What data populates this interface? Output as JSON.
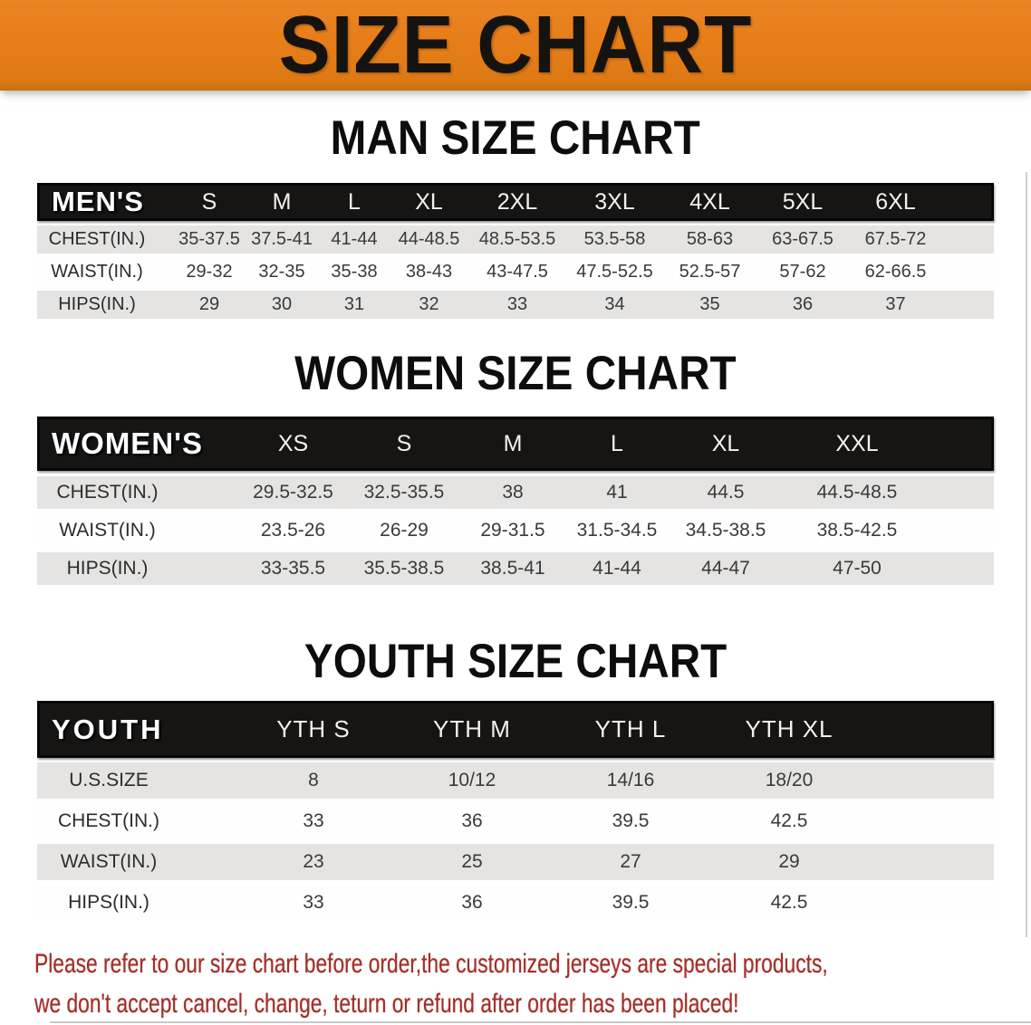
{
  "banner": {
    "title": "SIZE CHART"
  },
  "colors": {
    "banner_bg": "#e67d18",
    "header_bar_bg": "#171513",
    "shaded_row_bg": "#e5e4e2",
    "footer_text": "#a42e28"
  },
  "sections": [
    {
      "title": "MAN SIZE CHART",
      "header_label": "MEN'S",
      "columns": [
        "S",
        "M",
        "L",
        "XL",
        "2XL",
        "3XL",
        "4XL",
        "5XL",
        "6XL"
      ],
      "rows": [
        {
          "label": "CHEST(IN.)",
          "values": [
            "35-37.5",
            "37.5-41",
            "41-44",
            "44-48.5",
            "48.5-53.5",
            "53.5-58",
            "58-63",
            "63-67.5",
            "67.5-72"
          ]
        },
        {
          "label": "WAIST(IN.)",
          "values": [
            "29-32",
            "32-35",
            "35-38",
            "38-43",
            "43-47.5",
            "47.5-52.5",
            "52.5-57",
            "57-62",
            "62-66.5"
          ]
        },
        {
          "label": "HIPS(IN.)",
          "values": [
            "29",
            "30",
            "31",
            "32",
            "33",
            "34",
            "35",
            "36",
            "37"
          ]
        }
      ]
    },
    {
      "title": "WOMEN SIZE CHART",
      "header_label": "WOMEN'S",
      "columns": [
        "XS",
        "S",
        "M",
        "L",
        "XL",
        "XXL"
      ],
      "rows": [
        {
          "label": "CHEST(IN.)",
          "values": [
            "29.5-32.5",
            "32.5-35.5",
            "38",
            "41",
            "44.5",
            "44.5-48.5"
          ]
        },
        {
          "label": "WAIST(IN.)",
          "values": [
            "23.5-26",
            "26-29",
            "29-31.5",
            "31.5-34.5",
            "34.5-38.5",
            "38.5-42.5"
          ]
        },
        {
          "label": "HIPS(IN.)",
          "values": [
            "33-35.5",
            "35.5-38.5",
            "38.5-41",
            "41-44",
            "44-47",
            "47-50"
          ]
        }
      ]
    },
    {
      "title": "YOUTH SIZE CHART",
      "header_label": "YOUTH",
      "columns": [
        "YTH S",
        "YTH M",
        "YTH L",
        "YTH XL"
      ],
      "rows": [
        {
          "label": "U.S.SIZE",
          "values": [
            "8",
            "10/12",
            "14/16",
            "18/20"
          ]
        },
        {
          "label": "CHEST(IN.)",
          "values": [
            "33",
            "36",
            "39.5",
            "42.5"
          ]
        },
        {
          "label": "WAIST(IN.)",
          "values": [
            "23",
            "25",
            "27",
            "29"
          ]
        },
        {
          "label": "HIPS(IN.)",
          "values": [
            "33",
            "36",
            "39.5",
            "42.5"
          ]
        }
      ]
    }
  ],
  "footer": {
    "line1": "Please refer to our size chart before order,the customized jerseys are special products,",
    "line2": "we don't accept cancel, change, teturn or refund after order has been placed!"
  }
}
